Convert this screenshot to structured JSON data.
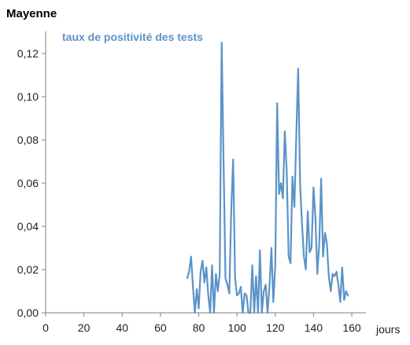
{
  "chart_data": {
    "type": "line",
    "title": "Mayenne",
    "series_label": "taux de positivité des tests",
    "xlabel": "jours",
    "ylabel": "",
    "xlim": [
      0,
      160
    ],
    "ylim": [
      0,
      0.13
    ],
    "x_ticks": [
      0,
      20,
      40,
      60,
      80,
      100,
      120,
      140,
      160
    ],
    "x_tick_labels": [
      "0",
      "20",
      "40",
      "60",
      "80",
      "100",
      "120",
      "140",
      "160"
    ],
    "y_ticks": [
      0,
      0.02,
      0.04,
      0.06,
      0.08,
      0.1,
      0.12
    ],
    "y_tick_labels": [
      "0,00",
      "0,02",
      "0,04",
      "0,06",
      "0,08",
      "0,10",
      "0,12"
    ],
    "grid": false,
    "line_color": "#5b93c8",
    "series": [
      {
        "name": "taux de positivité des tests",
        "x": [
          74,
          75,
          76,
          77,
          78,
          79,
          80,
          81,
          82,
          83,
          84,
          85,
          86,
          87,
          88,
          89,
          90,
          91,
          92,
          93,
          94,
          95,
          96,
          97,
          98,
          99,
          100,
          101,
          102,
          103,
          104,
          105,
          106,
          107,
          108,
          109,
          110,
          111,
          112,
          113,
          114,
          115,
          116,
          117,
          118,
          119,
          120,
          121,
          122,
          123,
          124,
          125,
          126,
          127,
          128,
          129,
          130,
          131,
          132,
          133,
          134,
          135,
          136,
          137,
          138,
          139,
          140,
          141,
          142,
          143,
          144,
          145,
          146,
          147,
          148,
          149,
          150,
          151,
          152,
          153,
          154,
          155,
          156,
          157,
          158
        ],
        "y": [
          0.016,
          0.019,
          0.026,
          0.012,
          0.0,
          0.011,
          0.002,
          0.019,
          0.024,
          0.014,
          0.021,
          0.008,
          0.0,
          0.022,
          0.0,
          0.018,
          0.01,
          0.018,
          0.125,
          0.07,
          0.016,
          0.013,
          0.009,
          0.047,
          0.071,
          0.016,
          0.008,
          0.009,
          0.012,
          0.0,
          0.009,
          0.008,
          0.0,
          0.0,
          0.022,
          0.0,
          0.017,
          0.0,
          0.029,
          0.0,
          0.01,
          0.013,
          0.0,
          0.013,
          0.03,
          0.005,
          0.022,
          0.097,
          0.055,
          0.06,
          0.053,
          0.084,
          0.066,
          0.026,
          0.023,
          0.063,
          0.049,
          0.082,
          0.113,
          0.059,
          0.041,
          0.026,
          0.02,
          0.047,
          0.028,
          0.03,
          0.058,
          0.044,
          0.018,
          0.032,
          0.062,
          0.026,
          0.037,
          0.032,
          0.017,
          0.01,
          0.018,
          0.017,
          0.019,
          0.013,
          0.005,
          0.021,
          0.006,
          0.01,
          0.008
        ]
      }
    ]
  }
}
